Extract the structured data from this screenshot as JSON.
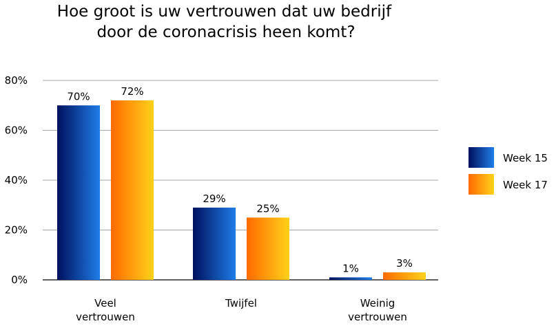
{
  "chart_data": {
    "type": "bar",
    "title_lines": [
      "Hoe groot is uw vertrouwen dat uw bedrijf",
      "door de coronacrisis heen komt?"
    ],
    "categories": [
      [
        "Veel",
        "vertrouwen"
      ],
      [
        "Twijfel"
      ],
      [
        "Weinig",
        "vertrouwen"
      ]
    ],
    "series": [
      {
        "name": "Week 15",
        "values": [
          70,
          29,
          1
        ],
        "labels": [
          "70%",
          "29%",
          "1%"
        ]
      },
      {
        "name": "Week 17",
        "values": [
          72,
          25,
          3
        ],
        "labels": [
          "72%",
          "25%",
          "3%"
        ]
      }
    ],
    "ylim": [
      0,
      80
    ],
    "yticks": [
      {
        "value": 0,
        "label": "0%"
      },
      {
        "value": 20,
        "label": "20%"
      },
      {
        "value": 40,
        "label": "40%"
      },
      {
        "value": 60,
        "label": "60%"
      },
      {
        "value": 80,
        "label": "80%"
      }
    ],
    "grid": true,
    "legend_position": "right",
    "colors": {
      "Week 15": [
        "#00105e",
        "#1f7de8"
      ],
      "Week 17": [
        "#ff6a00",
        "#ffd21a"
      ]
    }
  }
}
